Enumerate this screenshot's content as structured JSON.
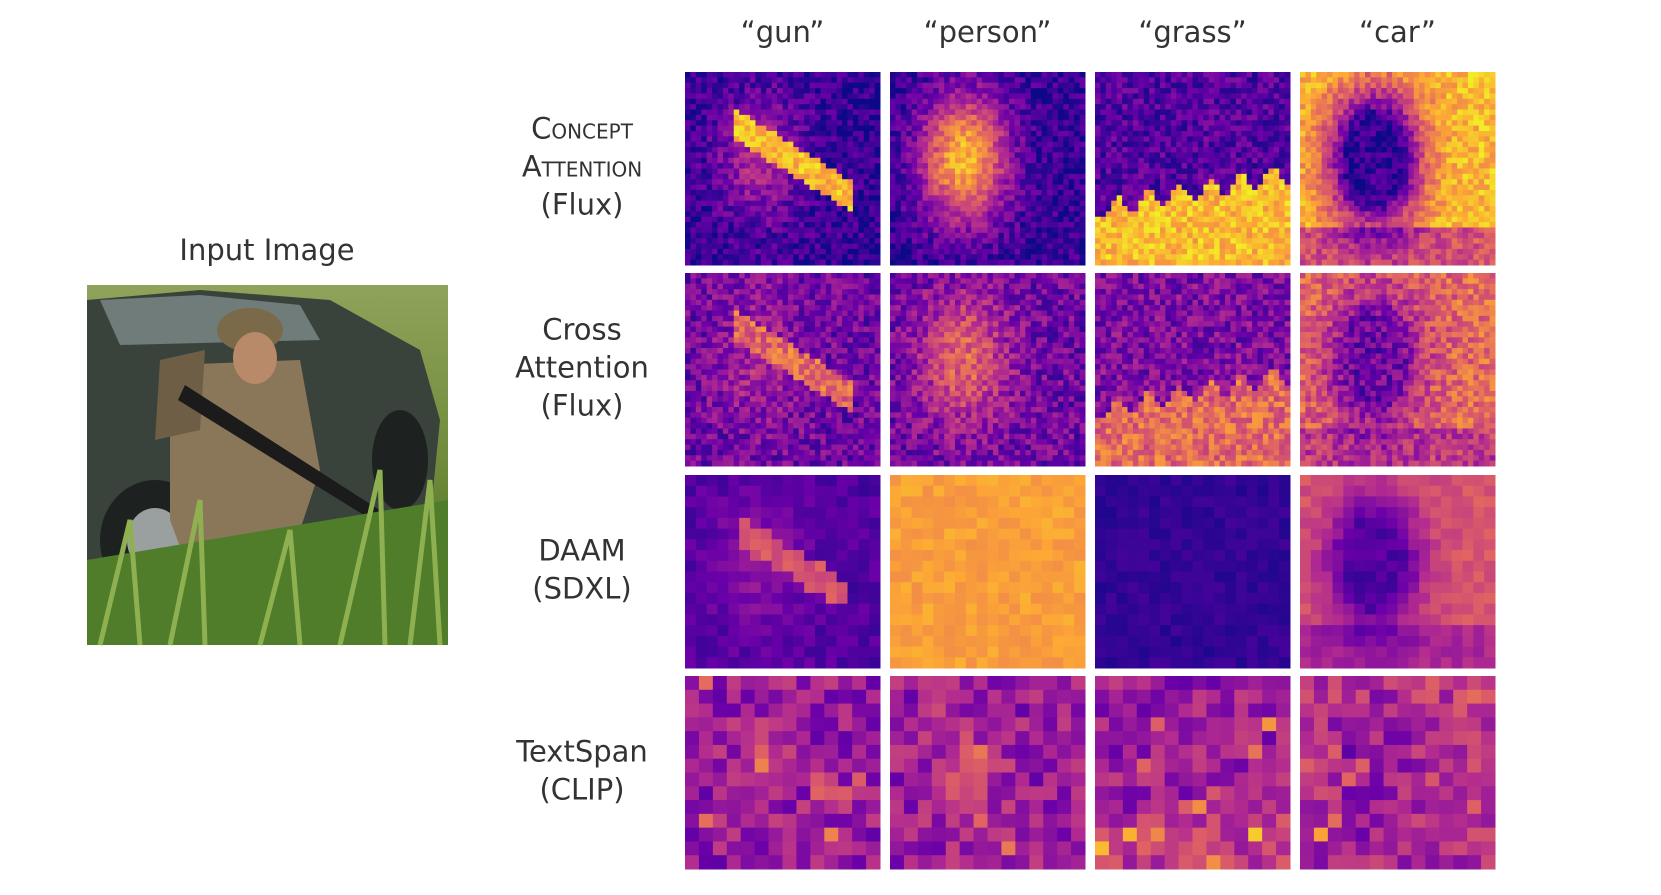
{
  "figure": {
    "input_label": "Input Image",
    "columns": [
      "“gun”",
      "“person”",
      "“grass”",
      "“car”"
    ],
    "rows": [
      {
        "lines": [
          "Concept",
          "Attention",
          "(Flux)"
        ]
      },
      {
        "lines": [
          "Cross",
          "Attention",
          "(Flux)"
        ]
      },
      {
        "lines": [
          "DAAM",
          "(SDXL)"
        ]
      },
      {
        "lines": [
          "TextSpan",
          "(CLIP)"
        ]
      }
    ]
  }
}
